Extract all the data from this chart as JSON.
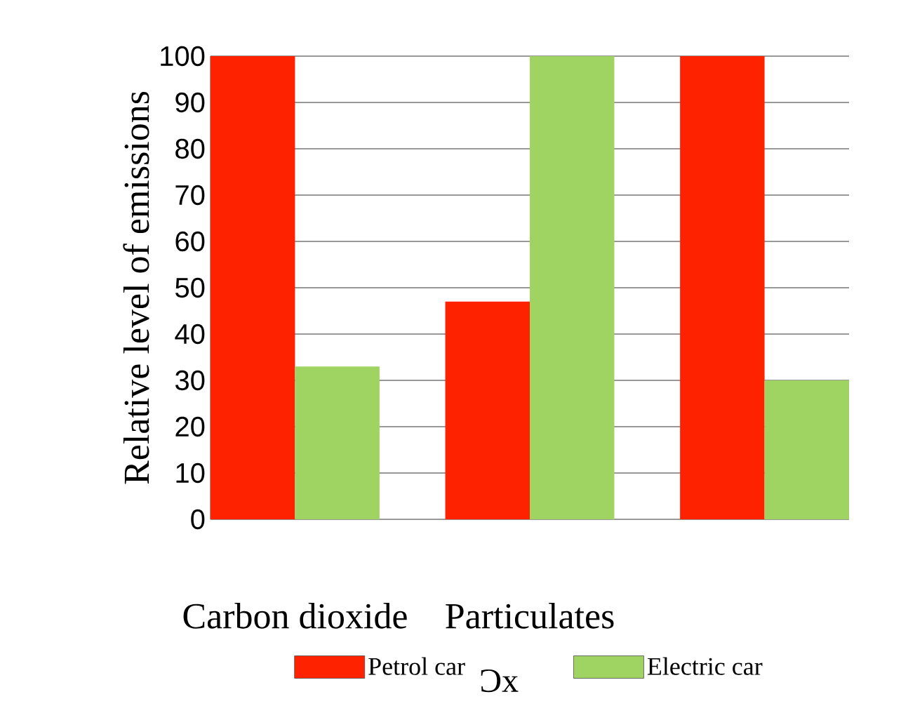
{
  "chart_data": {
    "type": "bar",
    "ylabel": "Relative level of emissions",
    "categories": [
      "Carbon dioxide",
      "Particulates",
      null
    ],
    "series": [
      {
        "name": "Petrol car",
        "color": "#ff2200",
        "values": [
          100,
          47,
          100
        ]
      },
      {
        "name": "Electric car",
        "color": "#a0d462",
        "values": [
          33,
          100,
          30
        ]
      }
    ],
    "ylim": [
      0,
      100
    ],
    "yticks": [
      0,
      10,
      20,
      30,
      40,
      50,
      60,
      70,
      80,
      90,
      100
    ],
    "grid": "y",
    "legend": "bottom",
    "annotations": [
      "Ɔx"
    ]
  }
}
